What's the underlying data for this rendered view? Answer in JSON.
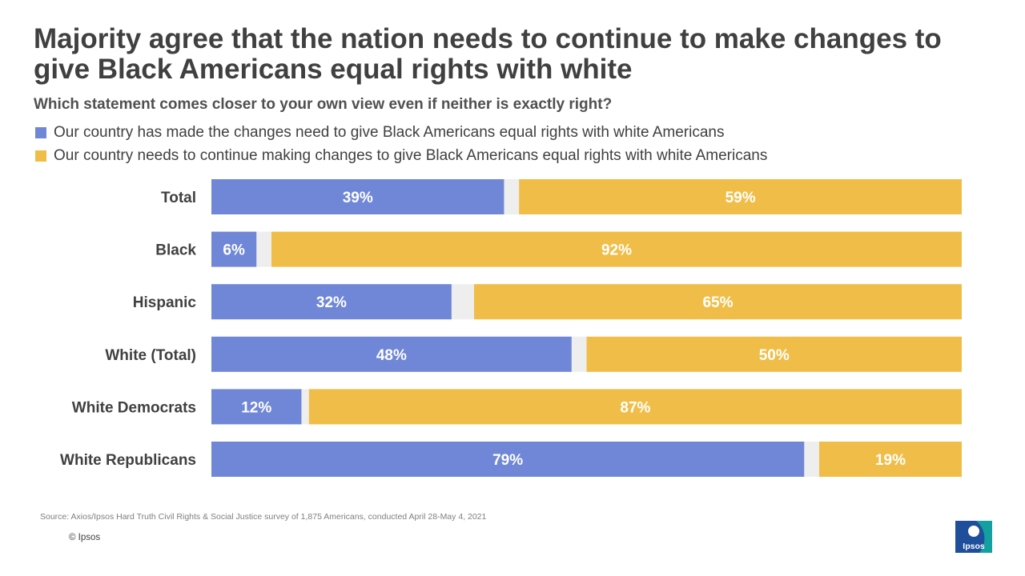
{
  "title": "Majority agree that the nation needs to continue to make changes to give Black Americans equal rights with white",
  "subtitle": "Which statement comes closer to your own view even if neither is exactly right?",
  "colors": {
    "series1": "#6f87d6",
    "series2": "#f0be48",
    "gap": "#eeeeee",
    "label": "#ffffff",
    "logo_dark": "#1f4e9a",
    "logo_teal": "#14a0a0"
  },
  "chart_data": {
    "type": "bar",
    "orientation": "horizontal",
    "stacked": true,
    "categories": [
      "Total",
      "Black",
      "Hispanic",
      "White (Total)",
      "White Democrats",
      "White Republicans"
    ],
    "series": [
      {
        "name": "Our country has made the changes need to give Black Americans equal rights with white Americans",
        "values": [
          39,
          6,
          32,
          48,
          12,
          79
        ]
      },
      {
        "name": "Our country needs to continue making changes to give Black Americans equal rights with white Americans",
        "values": [
          59,
          92,
          65,
          50,
          87,
          19
        ]
      }
    ],
    "value_suffix": "%",
    "xlim": [
      0,
      100
    ],
    "legend_position": "top-left"
  },
  "footer": {
    "source": "Source:  Axios/Ipsos Hard Truth Civil Rights & Social Justice survey of 1,875 Americans, conducted April 28-May 4, 2021",
    "copyright": "© Ipsos",
    "logo_text": "Ipsos"
  }
}
